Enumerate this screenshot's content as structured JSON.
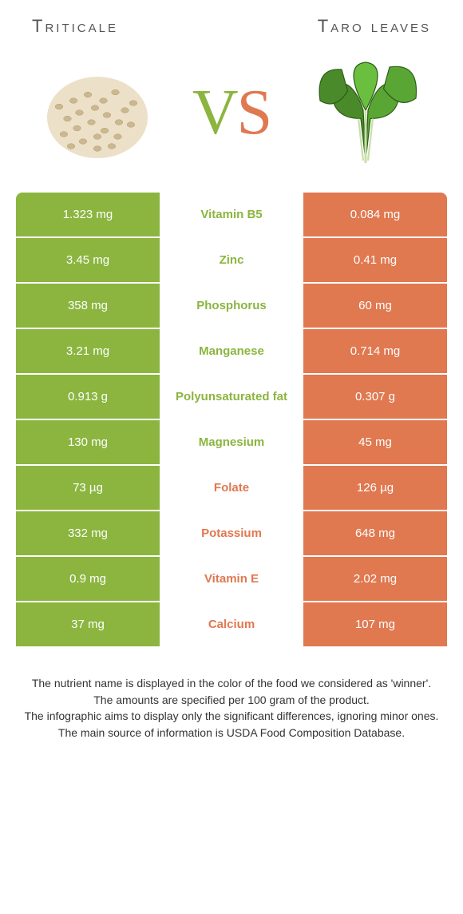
{
  "colors": {
    "green": "#8bb53f",
    "orange": "#e07850",
    "green_dim": "#f2f7e8",
    "orange_dim": "#fbeee9",
    "dim_text": "#999999"
  },
  "header": {
    "left": "Triticale",
    "right": "Taro leaves"
  },
  "vs": {
    "v": "V",
    "s": "S"
  },
  "rows": [
    {
      "left": "1.323 mg",
      "name": "Vitamin B5",
      "right": "0.084 mg",
      "winner": "left"
    },
    {
      "left": "3.45 mg",
      "name": "Zinc",
      "right": "0.41 mg",
      "winner": "left"
    },
    {
      "left": "358 mg",
      "name": "Phosphorus",
      "right": "60 mg",
      "winner": "left"
    },
    {
      "left": "3.21 mg",
      "name": "Manganese",
      "right": "0.714 mg",
      "winner": "left"
    },
    {
      "left": "0.913 g",
      "name": "Polyunsaturated fat",
      "right": "0.307 g",
      "winner": "left"
    },
    {
      "left": "130 mg",
      "name": "Magnesium",
      "right": "45 mg",
      "winner": "left"
    },
    {
      "left": "73 µg",
      "name": "Folate",
      "right": "126 µg",
      "winner": "right"
    },
    {
      "left": "332 mg",
      "name": "Potassium",
      "right": "648 mg",
      "winner": "right"
    },
    {
      "left": "0.9 mg",
      "name": "Vitamin E",
      "right": "2.02 mg",
      "winner": "right"
    },
    {
      "left": "37 mg",
      "name": "Calcium",
      "right": "107 mg",
      "winner": "right"
    }
  ],
  "footer": [
    "The nutrient name is displayed in the color of the food we considered as 'winner'.",
    "The amounts are specified per 100 gram of the product.",
    "The infographic aims to display only the significant differences, ignoring minor ones.",
    "The main source of information is USDA Food Composition Database."
  ]
}
